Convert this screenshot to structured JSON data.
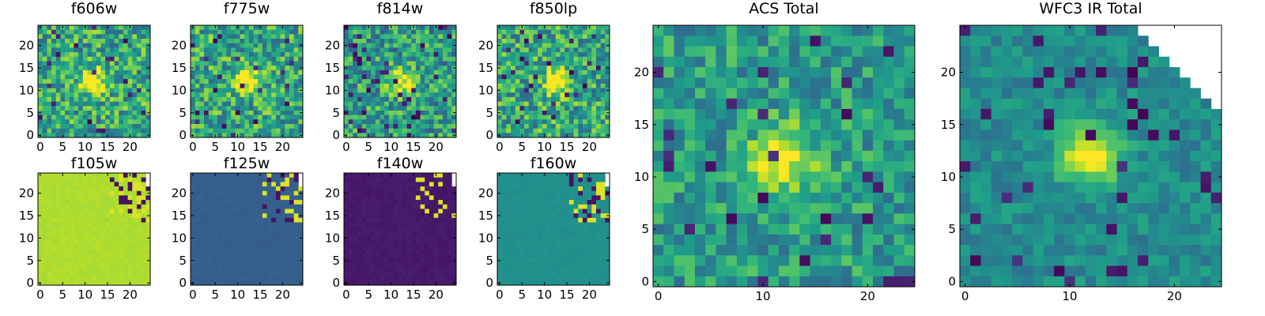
{
  "chart_data": [
    {
      "type": "heatmap",
      "title": "f606w",
      "x_ticks": [
        0,
        5,
        10,
        15,
        20
      ],
      "y_ticks": [
        0,
        5,
        10,
        15,
        20
      ],
      "xlim": [
        0,
        24
      ],
      "ylim": [
        0,
        24
      ],
      "grid": false,
      "colormap": "viridis",
      "features": {
        "bright_source": [
          12,
          12
        ],
        "noise": "high",
        "base_level": 0.6
      }
    },
    {
      "type": "heatmap",
      "title": "f775w",
      "x_ticks": [
        0,
        5,
        10,
        15,
        20
      ],
      "y_ticks": [
        0,
        5,
        10,
        15,
        20
      ],
      "xlim": [
        0,
        24
      ],
      "ylim": [
        0,
        24
      ],
      "grid": false,
      "colormap": "viridis",
      "features": {
        "bright_source": [
          12,
          12
        ],
        "noise": "high",
        "base_level": 0.6
      }
    },
    {
      "type": "heatmap",
      "title": "f814w",
      "x_ticks": [
        0,
        5,
        10,
        15,
        20
      ],
      "y_ticks": [
        0,
        5,
        10,
        15,
        20
      ],
      "xlim": [
        0,
        24
      ],
      "ylim": [
        0,
        24
      ],
      "grid": false,
      "colormap": "viridis",
      "features": {
        "bright_source": [
          12,
          12
        ],
        "noise": "high",
        "base_level": 0.55
      }
    },
    {
      "type": "heatmap",
      "title": "f850lp",
      "x_ticks": [
        0,
        5,
        10,
        15,
        20
      ],
      "y_ticks": [
        0,
        5,
        10,
        15,
        20
      ],
      "xlim": [
        0,
        24
      ],
      "ylim": [
        0,
        24
      ],
      "grid": false,
      "colormap": "viridis",
      "features": {
        "bright_source": [
          13,
          12
        ],
        "noise": "high",
        "base_level": 0.6
      }
    },
    {
      "type": "heatmap",
      "title": "f105w",
      "x_ticks": [
        0,
        5,
        10,
        15,
        20
      ],
      "y_ticks": [
        0,
        5,
        10,
        15,
        20
      ],
      "xlim": [
        0,
        24
      ],
      "ylim": [
        0,
        24
      ],
      "grid": false,
      "colormap": "viridis",
      "features": {
        "uniform_level": 0.88,
        "edge_region": "top-right",
        "masked_corner": "top-right"
      }
    },
    {
      "type": "heatmap",
      "title": "f125w",
      "x_ticks": [
        0,
        5,
        10,
        15,
        20
      ],
      "y_ticks": [
        0,
        5,
        10,
        15,
        20
      ],
      "xlim": [
        0,
        24
      ],
      "ylim": [
        0,
        24
      ],
      "grid": false,
      "colormap": "viridis",
      "features": {
        "uniform_level": 0.3,
        "edge_region": "top-right",
        "masked_corner": "top-right"
      }
    },
    {
      "type": "heatmap",
      "title": "f140w",
      "x_ticks": [
        0,
        5,
        10,
        15,
        20
      ],
      "y_ticks": [
        0,
        5,
        10,
        15,
        20
      ],
      "xlim": [
        0,
        24
      ],
      "ylim": [
        0,
        24
      ],
      "grid": false,
      "colormap": "viridis",
      "features": {
        "uniform_level": 0.07,
        "edge_region": "top-right",
        "masked_corner": "top-right"
      }
    },
    {
      "type": "heatmap",
      "title": "f160w",
      "x_ticks": [
        0,
        5,
        10,
        15,
        20
      ],
      "y_ticks": [
        0,
        5,
        10,
        15,
        20
      ],
      "xlim": [
        0,
        24
      ],
      "ylim": [
        0,
        24
      ],
      "grid": false,
      "colormap": "viridis",
      "features": {
        "uniform_level": 0.5,
        "edge_region": "top-right",
        "masked_corner": "top-right"
      }
    },
    {
      "type": "heatmap",
      "title": "ACS Total",
      "x_ticks": [
        0,
        10,
        20
      ],
      "y_ticks": [
        0,
        5,
        10,
        15,
        20
      ],
      "xlim": [
        0,
        24
      ],
      "ylim": [
        0,
        24
      ],
      "grid": false,
      "colormap": "viridis",
      "features": {
        "bright_source": [
          12,
          12
        ],
        "noise": "medium",
        "base_level": 0.55
      }
    },
    {
      "type": "heatmap",
      "title": "WFC3 IR Total",
      "x_ticks": [
        0,
        10,
        20
      ],
      "y_ticks": [
        0,
        5,
        10,
        15,
        20
      ],
      "xlim": [
        0,
        24
      ],
      "ylim": [
        0,
        24
      ],
      "grid": false,
      "colormap": "viridis",
      "features": {
        "bright_source": [
          12,
          12
        ],
        "noise": "low",
        "base_level": 0.48,
        "masked_corner": "top-right"
      }
    }
  ]
}
